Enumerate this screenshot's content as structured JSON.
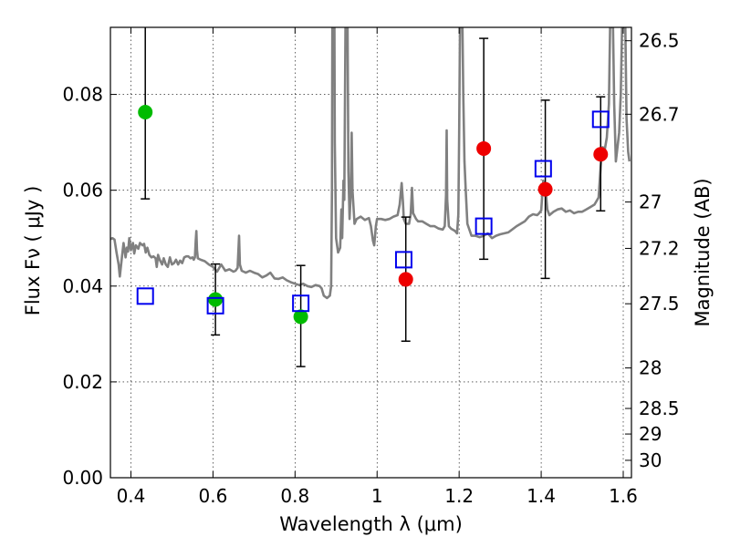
{
  "chart_data": {
    "type": "scatter",
    "title": "",
    "xlabel": "Wavelength  λ (μm)",
    "ylabel": "Flux  Fν  ( μJy )",
    "y2label": "Magnitude (AB)",
    "xlim": [
      0.35,
      1.62
    ],
    "ylim": [
      0.0,
      0.094
    ],
    "grid": true,
    "x_ticks": [
      0.4,
      0.6,
      0.8,
      1.0,
      1.2,
      1.4,
      1.6
    ],
    "x_tick_labels": [
      "0.4",
      "0.6",
      "0.8",
      "1",
      "1.2",
      "1.4",
      "1.6"
    ],
    "y_ticks": [
      0.0,
      0.02,
      0.04,
      0.06,
      0.08
    ],
    "y_tick_labels": [
      "0.00",
      "0.02",
      "0.04",
      "0.06",
      "0.08"
    ],
    "mag_ticks": [
      {
        "label": "26.5",
        "mag": 26.5
      },
      {
        "label": "26.7",
        "mag": 26.7
      },
      {
        "label": "27",
        "mag": 27.0
      },
      {
        "label": "27.2",
        "mag": 27.2
      },
      {
        "label": "27.5",
        "mag": 27.5
      },
      {
        "label": "28",
        "mag": 28.0
      },
      {
        "label": "28.5",
        "mag": 28.5
      },
      {
        "label": "29",
        "mag": 29.0
      },
      {
        "label": "30",
        "mag": 30.0
      }
    ],
    "series": [
      {
        "marker": "circle",
        "color": "#00bb00",
        "points": [
          {
            "x": 0.435,
            "y": 0.0763,
            "ylo": 0.0582,
            "yhi": 0.094
          },
          {
            "x": 0.606,
            "y": 0.0372,
            "ylo": 0.0298,
            "yhi": 0.0446
          },
          {
            "x": 0.814,
            "y": 0.0336,
            "ylo": 0.0232,
            "yhi": 0.0443
          }
        ]
      },
      {
        "marker": "circle",
        "color": "#ee0000",
        "points": [
          {
            "x": 1.07,
            "y": 0.0414,
            "ylo": 0.0285,
            "yhi": 0.0544
          },
          {
            "x": 1.26,
            "y": 0.0687,
            "ylo": 0.0456,
            "yhi": 0.0917
          },
          {
            "x": 1.41,
            "y": 0.0602,
            "ylo": 0.0416,
            "yhi": 0.0788
          },
          {
            "x": 1.545,
            "y": 0.0675,
            "ylo": 0.0557,
            "yhi": 0.0795
          }
        ]
      },
      {
        "marker": "square",
        "color": "#0000ee",
        "points": [
          {
            "x": 0.435,
            "y": 0.0379
          },
          {
            "x": 0.606,
            "y": 0.0359
          },
          {
            "x": 0.814,
            "y": 0.0364
          },
          {
            "x": 1.065,
            "y": 0.0455
          },
          {
            "x": 1.26,
            "y": 0.0525
          },
          {
            "x": 1.405,
            "y": 0.0645
          },
          {
            "x": 1.545,
            "y": 0.0748
          }
        ]
      }
    ],
    "spectrum": {
      "color": "#808080",
      "points": [
        [
          0.35,
          0.0498
        ],
        [
          0.355,
          0.05
        ],
        [
          0.36,
          0.0497
        ],
        [
          0.365,
          0.047
        ],
        [
          0.37,
          0.0445
        ],
        [
          0.373,
          0.042
        ],
        [
          0.378,
          0.046
        ],
        [
          0.382,
          0.049
        ],
        [
          0.387,
          0.046
        ],
        [
          0.39,
          0.048
        ],
        [
          0.393,
          0.0472
        ],
        [
          0.396,
          0.05
        ],
        [
          0.4,
          0.0475
        ],
        [
          0.405,
          0.049
        ],
        [
          0.408,
          0.0468
        ],
        [
          0.412,
          0.0485
        ],
        [
          0.418,
          0.0478
        ],
        [
          0.422,
          0.049
        ],
        [
          0.428,
          0.0485
        ],
        [
          0.432,
          0.0488
        ],
        [
          0.436,
          0.047
        ],
        [
          0.44,
          0.048
        ],
        [
          0.445,
          0.0465
        ],
        [
          0.45,
          0.046
        ],
        [
          0.455,
          0.0462
        ],
        [
          0.46,
          0.0458
        ],
        [
          0.463,
          0.044
        ],
        [
          0.466,
          0.0465
        ],
        [
          0.47,
          0.0455
        ],
        [
          0.476,
          0.0445
        ],
        [
          0.48,
          0.0458
        ],
        [
          0.485,
          0.0445
        ],
        [
          0.49,
          0.044
        ],
        [
          0.495,
          0.046
        ],
        [
          0.5,
          0.0445
        ],
        [
          0.505,
          0.0448
        ],
        [
          0.51,
          0.0455
        ],
        [
          0.515,
          0.0445
        ],
        [
          0.52,
          0.0453
        ],
        [
          0.525,
          0.0448
        ],
        [
          0.53,
          0.046
        ],
        [
          0.535,
          0.0462
        ],
        [
          0.54,
          0.0462
        ],
        [
          0.545,
          0.0458
        ],
        [
          0.55,
          0.046
        ],
        [
          0.553,
          0.0455
        ],
        [
          0.556,
          0.046
        ],
        [
          0.558,
          0.0495
        ],
        [
          0.5595,
          0.0515
        ],
        [
          0.561,
          0.0475
        ],
        [
          0.563,
          0.0458
        ],
        [
          0.57,
          0.0455
        ],
        [
          0.58,
          0.0452
        ],
        [
          0.59,
          0.0445
        ],
        [
          0.6,
          0.044
        ],
        [
          0.61,
          0.043
        ],
        [
          0.62,
          0.0445
        ],
        [
          0.63,
          0.0432
        ],
        [
          0.64,
          0.0435
        ],
        [
          0.65,
          0.043
        ],
        [
          0.655,
          0.0432
        ],
        [
          0.66,
          0.0438
        ],
        [
          0.6635,
          0.0505
        ],
        [
          0.6655,
          0.0445
        ],
        [
          0.67,
          0.0432
        ],
        [
          0.68,
          0.0428
        ],
        [
          0.69,
          0.0432
        ],
        [
          0.7,
          0.0428
        ],
        [
          0.71,
          0.0425
        ],
        [
          0.72,
          0.0418
        ],
        [
          0.73,
          0.0422
        ],
        [
          0.74,
          0.0428
        ],
        [
          0.75,
          0.0416
        ],
        [
          0.76,
          0.0415
        ],
        [
          0.77,
          0.0418
        ],
        [
          0.78,
          0.0412
        ],
        [
          0.79,
          0.0408
        ],
        [
          0.8,
          0.0405
        ],
        [
          0.81,
          0.0402
        ],
        [
          0.82,
          0.0405
        ],
        [
          0.83,
          0.04
        ],
        [
          0.84,
          0.0398
        ],
        [
          0.85,
          0.0402
        ],
        [
          0.86,
          0.04
        ],
        [
          0.865,
          0.0395
        ],
        [
          0.87,
          0.038
        ],
        [
          0.878,
          0.0375
        ],
        [
          0.885,
          0.038
        ],
        [
          0.888,
          0.04
        ],
        [
          0.89,
          0.06
        ],
        [
          0.891,
          0.094
        ],
        [
          0.896,
          0.094
        ],
        [
          0.897,
          0.07
        ],
        [
          0.9,
          0.05
        ],
        [
          0.905,
          0.047
        ],
        [
          0.91,
          0.048
        ],
        [
          0.913,
          0.056
        ],
        [
          0.915,
          0.05
        ],
        [
          0.918,
          0.062
        ],
        [
          0.92,
          0.058
        ],
        [
          0.923,
          0.094
        ],
        [
          0.928,
          0.094
        ],
        [
          0.93,
          0.064
        ],
        [
          0.933,
          0.054
        ],
        [
          0.936,
          0.06
        ],
        [
          0.938,
          0.072
        ],
        [
          0.94,
          0.06
        ],
        [
          0.945,
          0.053
        ],
        [
          0.95,
          0.054
        ],
        [
          0.96,
          0.0545
        ],
        [
          0.97,
          0.0538
        ],
        [
          0.98,
          0.0542
        ],
        [
          0.985,
          0.0525
        ],
        [
          0.99,
          0.0495
        ],
        [
          0.993,
          0.0485
        ],
        [
          0.997,
          0.0525
        ],
        [
          1.0,
          0.054
        ],
        [
          1.01,
          0.054
        ],
        [
          1.02,
          0.0538
        ],
        [
          1.03,
          0.054
        ],
        [
          1.04,
          0.0545
        ],
        [
          1.05,
          0.0548
        ],
        [
          1.055,
          0.057
        ],
        [
          1.06,
          0.0615
        ],
        [
          1.063,
          0.0575
        ],
        [
          1.065,
          0.054
        ],
        [
          1.07,
          0.053
        ],
        [
          1.078,
          0.053
        ],
        [
          1.082,
          0.055
        ],
        [
          1.085,
          0.0605
        ],
        [
          1.088,
          0.0552
        ],
        [
          1.095,
          0.054
        ],
        [
          1.1,
          0.0535
        ],
        [
          1.11,
          0.0535
        ],
        [
          1.12,
          0.053
        ],
        [
          1.13,
          0.0525
        ],
        [
          1.14,
          0.0525
        ],
        [
          1.15,
          0.052
        ],
        [
          1.16,
          0.0518
        ],
        [
          1.165,
          0.0525
        ],
        [
          1.168,
          0.059
        ],
        [
          1.1695,
          0.0725
        ],
        [
          1.171,
          0.058
        ],
        [
          1.175,
          0.0525
        ],
        [
          1.18,
          0.052
        ],
        [
          1.19,
          0.0515
        ],
        [
          1.195,
          0.051
        ],
        [
          1.198,
          0.055
        ],
        [
          1.2,
          0.072
        ],
        [
          1.202,
          0.094
        ],
        [
          1.208,
          0.094
        ],
        [
          1.21,
          0.08
        ],
        [
          1.213,
          0.066
        ],
        [
          1.216,
          0.06
        ],
        [
          1.22,
          0.053
        ],
        [
          1.23,
          0.0505
        ],
        [
          1.24,
          0.0505
        ],
        [
          1.25,
          0.0502
        ],
        [
          1.26,
          0.0505
        ],
        [
          1.27,
          0.051
        ],
        [
          1.28,
          0.05
        ],
        [
          1.29,
          0.0505
        ],
        [
          1.3,
          0.0508
        ],
        [
          1.32,
          0.0512
        ],
        [
          1.34,
          0.0525
        ],
        [
          1.36,
          0.0535
        ],
        [
          1.37,
          0.0545
        ],
        [
          1.38,
          0.055
        ],
        [
          1.39,
          0.0548
        ],
        [
          1.395,
          0.0552
        ],
        [
          1.4,
          0.0558
        ],
        [
          1.405,
          0.062
        ],
        [
          1.41,
          0.0608
        ],
        [
          1.415,
          0.056
        ],
        [
          1.42,
          0.0548
        ],
        [
          1.43,
          0.0555
        ],
        [
          1.44,
          0.056
        ],
        [
          1.45,
          0.0562
        ],
        [
          1.46,
          0.0555
        ],
        [
          1.47,
          0.0558
        ],
        [
          1.48,
          0.0552
        ],
        [
          1.49,
          0.0555
        ],
        [
          1.5,
          0.0555
        ],
        [
          1.51,
          0.056
        ],
        [
          1.52,
          0.0565
        ],
        [
          1.53,
          0.057
        ],
        [
          1.54,
          0.0585
        ],
        [
          1.545,
          0.065
        ],
        [
          1.55,
          0.069
        ],
        [
          1.555,
          0.0685
        ],
        [
          1.56,
          0.071
        ],
        [
          1.565,
          0.078
        ],
        [
          1.568,
          0.094
        ],
        [
          1.575,
          0.094
        ],
        [
          1.578,
          0.078
        ],
        [
          1.582,
          0.066
        ],
        [
          1.59,
          0.072
        ],
        [
          1.594,
          0.08
        ],
        [
          1.597,
          0.094
        ],
        [
          1.605,
          0.094
        ],
        [
          1.608,
          0.075
        ],
        [
          1.612,
          0.068
        ],
        [
          1.615,
          0.066
        ]
      ]
    }
  }
}
